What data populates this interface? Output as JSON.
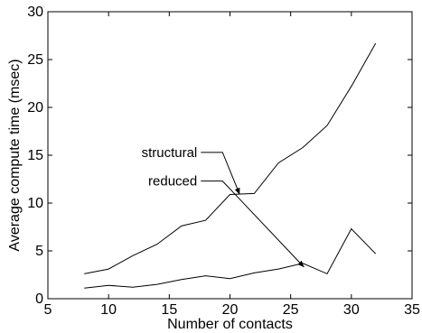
{
  "chart_data": {
    "type": "line",
    "title": "",
    "xlabel": "Number of contacts",
    "ylabel": "Average compute time (msec)",
    "xlim": [
      5,
      35
    ],
    "ylim": [
      0,
      30
    ],
    "xticks": [
      5,
      10,
      15,
      20,
      25,
      30,
      35
    ],
    "yticks": [
      0,
      5,
      10,
      15,
      20,
      25,
      30
    ],
    "grid": false,
    "legend": "none (inline text labels with leader lines)",
    "series": [
      {
        "name": "structural",
        "x": [
          8,
          10,
          12,
          14,
          16,
          18,
          20,
          22,
          24,
          26,
          28,
          30,
          32
        ],
        "y": [
          2.6,
          3.1,
          4.5,
          5.7,
          7.6,
          8.2,
          10.9,
          11.0,
          14.2,
          15.8,
          18.1,
          22.2,
          26.7
        ],
        "label_at": [
          17.6,
          15.3
        ],
        "pointer_to": [
          20.8,
          10.9
        ]
      },
      {
        "name": "reduced",
        "x": [
          8,
          10,
          12,
          14,
          16,
          18,
          20,
          22,
          24,
          26,
          28,
          30,
          32
        ],
        "y": [
          1.1,
          1.4,
          1.2,
          1.5,
          2.0,
          2.4,
          2.1,
          2.7,
          3.1,
          3.7,
          2.6,
          7.3,
          4.7
        ],
        "label_at": [
          17.6,
          12.3
        ],
        "pointer_to": [
          26.1,
          3.3
        ]
      }
    ],
    "colors": {
      "line": "#000000",
      "background": "#ffffff"
    }
  }
}
